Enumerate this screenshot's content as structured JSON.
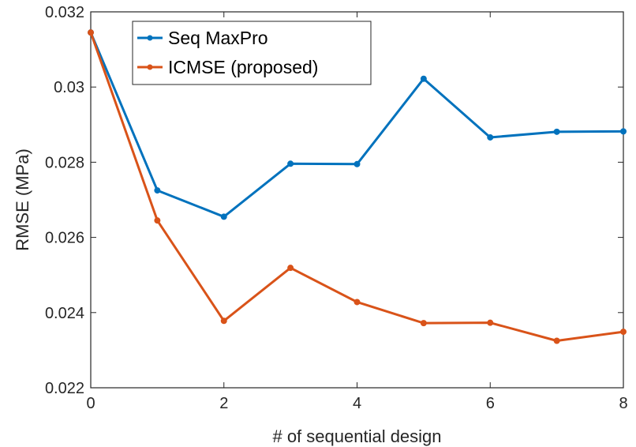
{
  "chart_data": {
    "type": "line",
    "title": "",
    "xlabel": "# of sequential design",
    "ylabel": "RMSE (MPa)",
    "xlim": [
      0,
      8
    ],
    "ylim": [
      0.022,
      0.032
    ],
    "xticks": [
      "0",
      "2",
      "4",
      "6",
      "8"
    ],
    "xtick_values": [
      0,
      2,
      4,
      6,
      8
    ],
    "yticks": [
      "0.022",
      "0.024",
      "0.026",
      "0.028",
      "0.03",
      "0.032"
    ],
    "ytick_values": [
      0.022,
      0.024,
      0.026,
      0.028,
      0.03,
      0.032
    ],
    "grid": false,
    "legend_position": "top-left",
    "x": [
      0,
      1,
      2,
      3,
      4,
      5,
      6,
      7,
      8
    ],
    "series": [
      {
        "name": "Seq MaxPro",
        "color": "#0072BD",
        "values": [
          0.03145,
          0.02725,
          0.02655,
          0.02796,
          0.02795,
          0.03022,
          0.02866,
          0.02881,
          0.02882
        ]
      },
      {
        "name": "ICMSE (proposed)",
        "color": "#D95319",
        "values": [
          0.03145,
          0.02645,
          0.02378,
          0.02519,
          0.02428,
          0.02372,
          0.02373,
          0.02325,
          0.02349
        ]
      }
    ]
  }
}
